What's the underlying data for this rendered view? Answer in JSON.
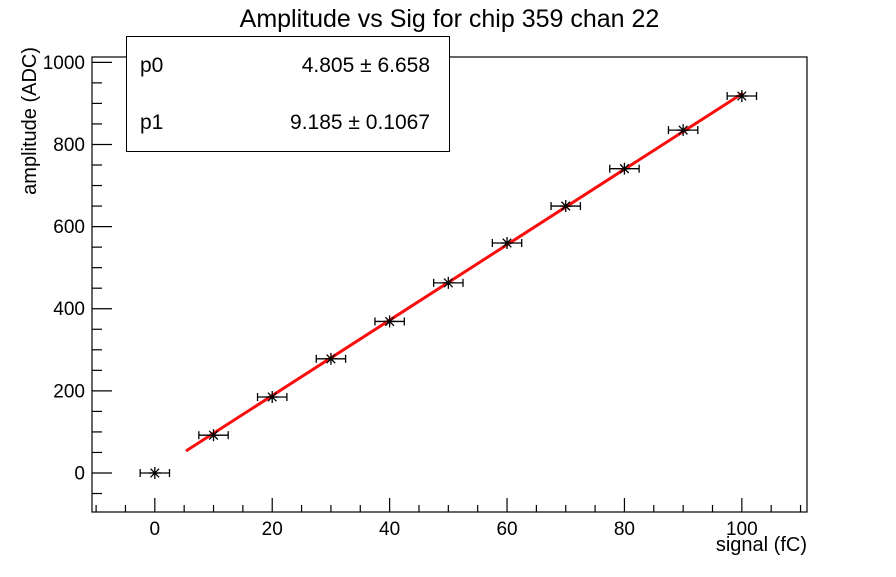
{
  "chart_data": {
    "type": "scatter",
    "title": "Amplitude vs Sig for chip 359 chan 22",
    "xlabel": "signal (fC)",
    "ylabel": "amplitude (ADC)",
    "x": [
      0,
      10,
      20,
      30,
      40,
      50,
      60,
      70,
      80,
      90,
      100
    ],
    "y": [
      0,
      92,
      185,
      278,
      369,
      463,
      560,
      650,
      741,
      835,
      918
    ],
    "x_error": 2.5,
    "xlim": [
      -10.7,
      111.1
    ],
    "ylim": [
      -95,
      1013
    ],
    "x_ticks": {
      "major": [
        0,
        20,
        40,
        60,
        80,
        100
      ],
      "minor_step": 5
    },
    "y_ticks": {
      "major": [
        0,
        200,
        400,
        600,
        800,
        1000
      ],
      "minor_step": 50
    },
    "grid": false,
    "legend": "none",
    "marker": "asterisk-with-x-error-bars",
    "marker_color": "#000000",
    "fit": {
      "type": "linear",
      "p0": 4.805,
      "p1": 9.185,
      "range": [
        5.5,
        100
      ],
      "color": "#fb0d0d",
      "line_width": 3
    }
  },
  "stats_box": {
    "rows": [
      {
        "name": "p0",
        "value": "4.805 ± 6.658"
      },
      {
        "name": "p1",
        "value": "9.185 ± 0.1067"
      }
    ]
  }
}
